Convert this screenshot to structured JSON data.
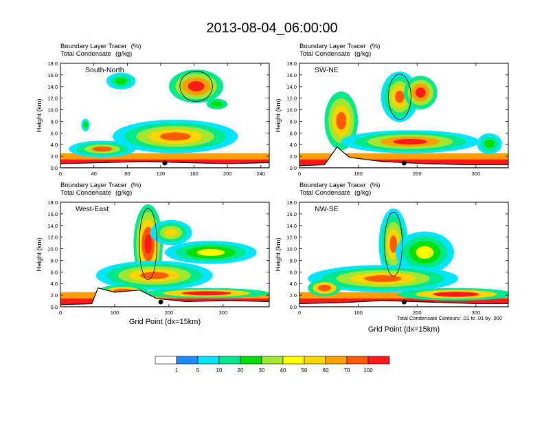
{
  "title": "2013-08-04_06:00:00",
  "footnote": "Total Condensate Contours: .01 to .01 by .000",
  "colorbar": {
    "colors": [
      "#ffffff",
      "#1e8cff",
      "#00e5ff",
      "#00e88c",
      "#00e000",
      "#a0e632",
      "#ffff00",
      "#ffd400",
      "#ffa000",
      "#ff5a00",
      "#ff1a1a"
    ],
    "labels": [
      "1",
      "5",
      "10",
      "20",
      "30",
      "40",
      "50",
      "60",
      "70",
      "100"
    ]
  },
  "chart_data": [
    {
      "type": "heatmap",
      "label": "South-North",
      "title_line1": "Boundary Layer Tracer",
      "unit_line1": "(%)",
      "title_line2": "Total Condensate",
      "unit_line2": "(g/kg)",
      "ylabel": "Height (km)",
      "xlabel": "",
      "xlim": [
        0,
        250
      ],
      "ylim": [
        0,
        18
      ],
      "xticks": [
        "0",
        "40",
        "80",
        "120",
        "160",
        "200",
        "240"
      ],
      "yticks": [
        "0.0",
        "2.0",
        "4.0",
        "6.0",
        "8.0",
        "10.0",
        "12.0",
        "14.0",
        "16.0",
        "18.0"
      ],
      "marker_x": 125
    },
    {
      "type": "heatmap",
      "label": "SW-NE",
      "title_line1": "Boundary Layer Tracer",
      "unit_line1": "(%)",
      "title_line2": "Total Condensate",
      "unit_line2": "(g/kg)",
      "ylabel": "Height (km)",
      "xlabel": "",
      "xlim": [
        0,
        355
      ],
      "ylim": [
        0,
        18
      ],
      "xticks": [
        "0",
        "100",
        "200",
        "300"
      ],
      "yticks": [
        "0.0",
        "2.0",
        "4.0",
        "6.0",
        "8.0",
        "10.0",
        "12.0",
        "14.0",
        "16.0",
        "18.0"
      ],
      "marker_x": 178
    },
    {
      "type": "heatmap",
      "label": "West-East",
      "title_line1": "Boundary Layer Tracer",
      "unit_line1": "(%)",
      "title_line2": "Total Condensate",
      "unit_line2": "(g/kg)",
      "ylabel": "Height (km)",
      "xlabel": "Grid Point (dx=15km)",
      "xlim": [
        0,
        385
      ],
      "ylim": [
        0,
        18
      ],
      "xticks": [
        "0",
        "100",
        "200",
        "300"
      ],
      "yticks": [
        "0.0",
        "2.0",
        "4.0",
        "6.0",
        "8.0",
        "10.0",
        "12.0",
        "14.0",
        "16.0",
        "18.0"
      ],
      "marker_x": 185
    },
    {
      "type": "heatmap",
      "label": "NW-SE",
      "title_line1": "Boundary Layer Tracer",
      "unit_line1": "(%)",
      "title_line2": "Total Condensate",
      "unit_line2": "(g/kg)",
      "ylabel": "Height (km)",
      "xlabel": "Grid Point (dx=15km)",
      "xlim": [
        0,
        355
      ],
      "ylim": [
        0,
        18
      ],
      "xticks": [
        "0",
        "100",
        "200",
        "300"
      ],
      "yticks": [
        "0.0",
        "2.0",
        "4.0",
        "6.0",
        "8.0",
        "10.0",
        "12.0",
        "14.0",
        "16.0",
        "18.0"
      ],
      "marker_x": 178
    }
  ]
}
